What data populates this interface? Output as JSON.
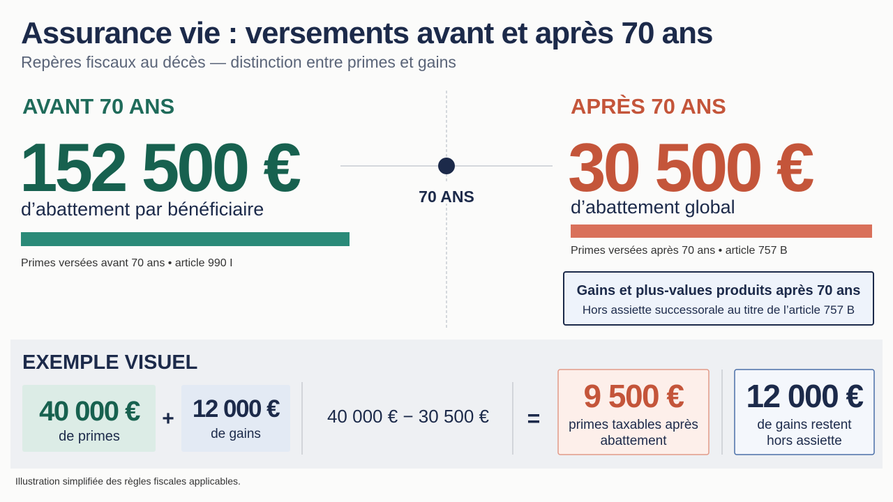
{
  "header": {
    "title": "Assurance vie : versements avant et après 70 ans",
    "subtitle": "Repères fiscaux au décès — distinction entre primes et gains"
  },
  "before": {
    "heading": "AVANT 70 ANS",
    "amount": "152 500 €",
    "description": "d’abattement par bénéficiaire",
    "caption": "Primes versées avant 70 ans  •  article 990 I"
  },
  "timeline": {
    "label": "70 ANS"
  },
  "after": {
    "heading": "APRÈS 70 ANS",
    "amount": "30 500 €",
    "description": "d’abattement global",
    "caption": "Primes versées après 70 ans  •  article 757 B",
    "note": {
      "title": "Gains et plus-values produits après 70 ans",
      "text": "Hors assiette successorale au titre de l’article 757 B"
    }
  },
  "example": {
    "heading": "EXEMPLE VISUEL",
    "premiums": {
      "amount": "40 000 €",
      "label": "de primes"
    },
    "plus": "+",
    "gains": {
      "amount": "12 000 €",
      "label": "de gains"
    },
    "calculation": "40 000 €  −  30 500 €",
    "equals": "=",
    "taxable": {
      "amount": "9 500 €",
      "lines": [
        "primes taxables après",
        "abattement"
      ]
    },
    "excluded": {
      "amount": "12 000 €",
      "lines": [
        "de gains restent",
        "hors assiette"
      ]
    }
  },
  "footer": {
    "note": "Illustration simplifiée des règles fiscales applicables."
  }
}
